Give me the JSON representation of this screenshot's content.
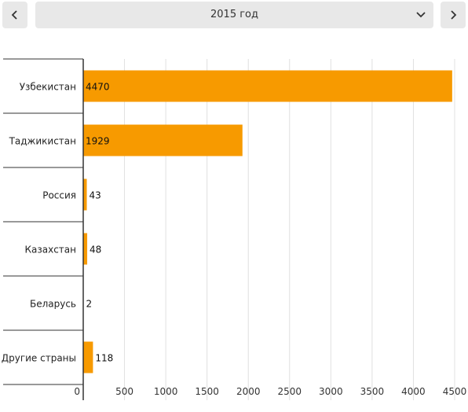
{
  "controls": {
    "prev_icon": "chevron-left-icon",
    "next_icon": "chevron-right-icon",
    "select_icon": "chevron-down-icon",
    "selected_year": "2015 год"
  },
  "colors": {
    "bar": "#f79a00",
    "axis": "#333333",
    "grid": "#e0e0e0",
    "control_bg": "#e8e8e8"
  },
  "chart_data": {
    "type": "bar",
    "orientation": "horizontal",
    "categories": [
      "Узбекистан",
      "Таджикистан",
      "Россия",
      "Казахстан",
      "Беларусь",
      "Другие страны"
    ],
    "values": [
      4470,
      1929,
      43,
      48,
      2,
      118
    ],
    "xlim": [
      0,
      4500
    ],
    "xticks": [
      0,
      500,
      1000,
      1500,
      2000,
      2500,
      3000,
      3500,
      4000,
      4500
    ],
    "grid": true,
    "data_labels": true
  }
}
